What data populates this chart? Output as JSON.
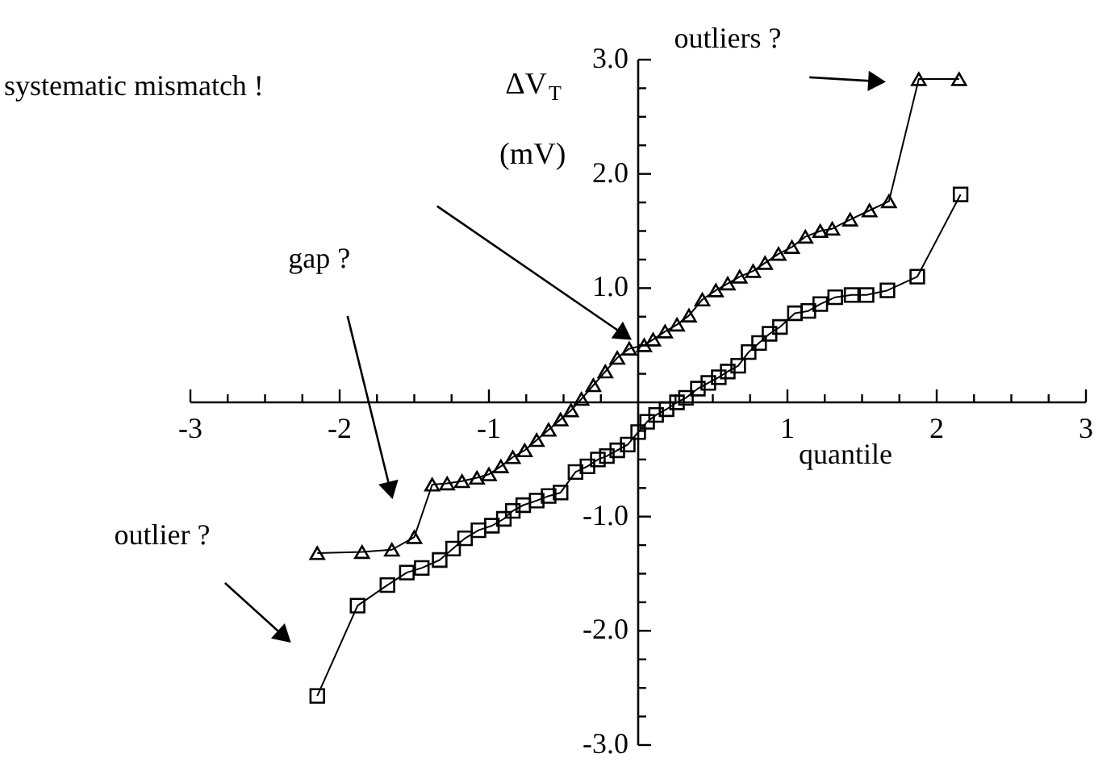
{
  "chart_data": {
    "type": "line",
    "xlabel": "quantile",
    "ylabel": "ΔV$_{T}$\n(mV)",
    "xlim": [
      -3,
      3
    ],
    "ylim": [
      -3,
      3
    ],
    "xticks": [
      {
        "value": -3,
        "label": "-3"
      },
      {
        "value": -2.75,
        "label": null
      },
      {
        "value": -2.5,
        "label": null
      },
      {
        "value": -2.25,
        "label": null
      },
      {
        "value": -2,
        "label": "-2"
      },
      {
        "value": -1.75,
        "label": null
      },
      {
        "value": -1.5,
        "label": null
      },
      {
        "value": -1.25,
        "label": null
      },
      {
        "value": -1,
        "label": "-1"
      },
      {
        "value": -0.75,
        "label": null
      },
      {
        "value": -0.5,
        "label": null
      },
      {
        "value": -0.25,
        "label": null
      },
      {
        "value": 0.25,
        "label": null
      },
      {
        "value": 0.5,
        "label": null
      },
      {
        "value": 0.75,
        "label": null
      },
      {
        "value": 1,
        "label": "1"
      },
      {
        "value": 1.25,
        "label": null
      },
      {
        "value": 1.5,
        "label": null
      },
      {
        "value": 1.75,
        "label": null
      },
      {
        "value": 2,
        "label": "2"
      },
      {
        "value": 2.25,
        "label": null
      },
      {
        "value": 2.5,
        "label": null
      },
      {
        "value": 2.75,
        "label": null
      },
      {
        "value": 3,
        "label": "3"
      }
    ],
    "yticks": [
      {
        "value": -3,
        "label": "-3.0"
      },
      {
        "value": -2.75,
        "label": null
      },
      {
        "value": -2.5,
        "label": null
      },
      {
        "value": -2.25,
        "label": null
      },
      {
        "value": -2,
        "label": "-2.0"
      },
      {
        "value": -1.75,
        "label": null
      },
      {
        "value": -1.5,
        "label": null
      },
      {
        "value": -1.25,
        "label": null
      },
      {
        "value": -1,
        "label": "-1.0"
      },
      {
        "value": -0.75,
        "label": null
      },
      {
        "value": -0.5,
        "label": null
      },
      {
        "value": -0.25,
        "label": null
      },
      {
        "value": 0.25,
        "label": null
      },
      {
        "value": 0.5,
        "label": null
      },
      {
        "value": 0.75,
        "label": null
      },
      {
        "value": 1,
        "label": "1.0"
      },
      {
        "value": 1.25,
        "label": null
      },
      {
        "value": 1.5,
        "label": null
      },
      {
        "value": 1.75,
        "label": null
      },
      {
        "value": 2,
        "label": "2.0"
      },
      {
        "value": 2.25,
        "label": null
      },
      {
        "value": 2.5,
        "label": null
      },
      {
        "value": 2.75,
        "label": null
      },
      {
        "value": 3,
        "label": "3.0"
      }
    ],
    "grid": false,
    "line_style": "solid",
    "series": [
      {
        "color": "#000000",
        "marker": "triangle",
        "x": [
          -2.15,
          -1.85,
          -1.65,
          -1.5,
          -1.38,
          -1.28,
          -1.18,
          -1.08,
          -1.0,
          -0.92,
          -0.84,
          -0.76,
          -0.68,
          -0.6,
          -0.52,
          -0.45,
          -0.38,
          -0.3,
          -0.22,
          -0.14,
          -0.06,
          0.04,
          0.1,
          0.18,
          0.26,
          0.34,
          0.43,
          0.52,
          0.6,
          0.68,
          0.77,
          0.85,
          0.94,
          1.03,
          1.12,
          1.22,
          1.3,
          1.42,
          1.55,
          1.68,
          1.88,
          2.15
        ],
        "values": [
          -1.32,
          -1.31,
          -1.29,
          -1.18,
          -0.72,
          -0.71,
          -0.69,
          -0.66,
          -0.63,
          -0.56,
          -0.48,
          -0.42,
          -0.33,
          -0.24,
          -0.15,
          -0.07,
          0.03,
          0.15,
          0.27,
          0.39,
          0.47,
          0.5,
          0.55,
          0.62,
          0.68,
          0.76,
          0.9,
          0.98,
          1.04,
          1.1,
          1.15,
          1.22,
          1.3,
          1.36,
          1.45,
          1.5,
          1.52,
          1.6,
          1.68,
          1.76,
          2.83,
          2.83
        ]
      },
      {
        "color": "#000000",
        "marker": "square",
        "x": [
          -2.15,
          -1.88,
          -1.68,
          -1.55,
          -1.45,
          -1.33,
          -1.24,
          -1.16,
          -1.07,
          -0.98,
          -0.9,
          -0.84,
          -0.77,
          -0.68,
          -0.6,
          -0.52,
          -0.42,
          -0.34,
          -0.27,
          -0.21,
          -0.14,
          -0.07,
          0.0,
          0.06,
          0.12,
          0.19,
          0.26,
          0.32,
          0.4,
          0.47,
          0.54,
          0.6,
          0.67,
          0.74,
          0.81,
          0.88,
          0.95,
          1.05,
          1.14,
          1.22,
          1.32,
          1.43,
          1.53,
          1.67,
          1.87,
          2.16
        ],
        "values": [
          -2.57,
          -1.78,
          -1.6,
          -1.49,
          -1.45,
          -1.38,
          -1.28,
          -1.19,
          -1.12,
          -1.08,
          -1.02,
          -0.95,
          -0.9,
          -0.86,
          -0.82,
          -0.79,
          -0.61,
          -0.56,
          -0.5,
          -0.47,
          -0.42,
          -0.37,
          -0.26,
          -0.17,
          -0.11,
          -0.06,
          0.0,
          0.04,
          0.12,
          0.17,
          0.22,
          0.27,
          0.32,
          0.44,
          0.52,
          0.6,
          0.66,
          0.78,
          0.8,
          0.86,
          0.92,
          0.94,
          0.94,
          0.98,
          1.1,
          1.82
        ]
      }
    ],
    "annotations": [
      "outliers ?",
      "systematic mismatch !",
      "gap ?",
      "outlier ?"
    ]
  }
}
